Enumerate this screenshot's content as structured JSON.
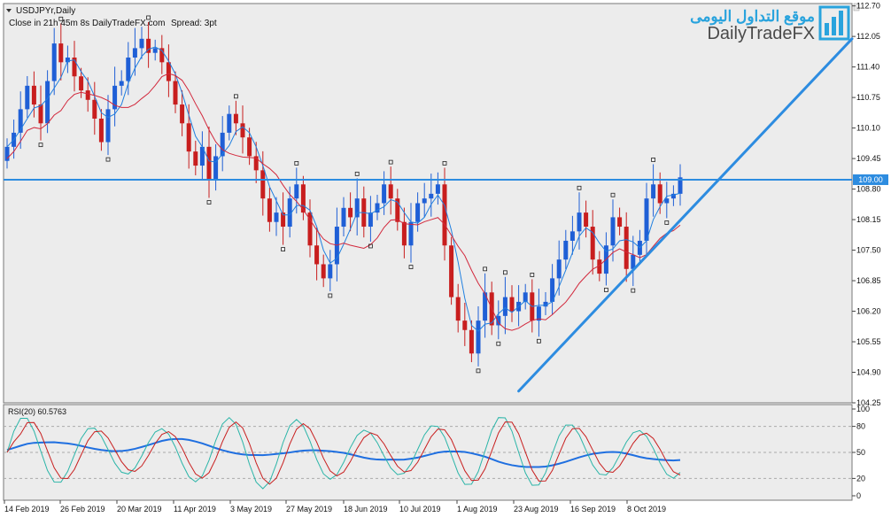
{
  "header": {
    "symbol": "USDJPYr,Daily",
    "status": "Close in 21h 45m 8s",
    "source": "DailyTradeFX.com",
    "spread": "Spread: 3pt"
  },
  "logo": {
    "arabic": "موقع التداول اليومى",
    "brand": "DailyTradeFX",
    "arabic_color": "#29a3dd",
    "brand_color": "#4a4a4a"
  },
  "colors": {
    "bull": "#1f5fd6",
    "bear": "#c81e1e",
    "ma_fast": "#1f7fe0",
    "ma_slow": "#d2283c",
    "trendline": "#2d8ce0",
    "plot_bg": "#ececec"
  },
  "chart_data": [
    {
      "type": "candlestick",
      "symbol": "USDJPYr,Daily",
      "ylim": [
        104.25,
        112.75
      ],
      "y_ticks": [
        "112.70",
        "112.05",
        "111.40",
        "110.75",
        "110.10",
        "109.45",
        "108.80",
        "108.15",
        "107.50",
        "106.85",
        "106.20",
        "105.55",
        "104.90",
        "104.25"
      ],
      "x_ticks": [
        "14 Feb 2019",
        "26 Feb 2019",
        "20 Mar 2019",
        "11 Apr 2019",
        "3 May 2019",
        "27 May 2019",
        "18 Jun 2019",
        "10 Jul 2019",
        "1 Aug 2019",
        "23 Aug 2019",
        "16 Sep 2019",
        "8 Oct 2019"
      ],
      "horizontal_line": {
        "value": 109.0,
        "label": "109.00"
      },
      "trendline": {
        "from": [
          "23 Aug 2019",
          104.5
        ],
        "to": [
          "end",
          112.0
        ]
      },
      "close_path": [
        109.7,
        110.0,
        110.5,
        111.0,
        110.6,
        110.2,
        111.1,
        111.9,
        111.5,
        111.6,
        111.2,
        110.9,
        110.7,
        110.3,
        109.8,
        110.5,
        111.0,
        111.1,
        111.6,
        111.8,
        112.0,
        111.7,
        111.8,
        111.5,
        111.1,
        110.6,
        110.2,
        109.6,
        109.3,
        109.7,
        109.0,
        109.5,
        110.0,
        110.4,
        110.2,
        109.9,
        109.5,
        109.2,
        108.6,
        108.1,
        108.3,
        108.0,
        108.6,
        108.9,
        108.3,
        107.6,
        107.2,
        106.9,
        107.2,
        108.0,
        108.4,
        108.2,
        108.6,
        108.0,
        108.3,
        108.5,
        108.9,
        108.6,
        108.1,
        107.6,
        108.1,
        108.5,
        108.6,
        108.7,
        108.9,
        107.6,
        106.5,
        106.0,
        105.8,
        105.3,
        106.0,
        106.6,
        105.9,
        106.1,
        106.5,
        106.2,
        106.4,
        106.6,
        106.0,
        106.3,
        106.4,
        106.9,
        107.3,
        107.7,
        107.9,
        108.3,
        108.0,
        107.3,
        107.0,
        107.6,
        108.2,
        108.0,
        107.1,
        107.4,
        107.7,
        108.6,
        108.9,
        108.5,
        108.6,
        108.7,
        109.05
      ],
      "rsi": {
        "label": "RSI(20) 60.5763",
        "levels": [
          "100",
          "80",
          "50",
          "20",
          "0"
        ]
      }
    }
  ],
  "xaxis_ticks": [
    "14 Feb 2019",
    "26 Feb 2019",
    "20 Mar 2019",
    "11 Apr 2019",
    "3 May 2019",
    "27 May 2019",
    "18 Jun 2019",
    "10 Jul 2019",
    "1 Aug 2019",
    "23 Aug 2019",
    "16 Sep 2019",
    "8 Oct 2019"
  ]
}
